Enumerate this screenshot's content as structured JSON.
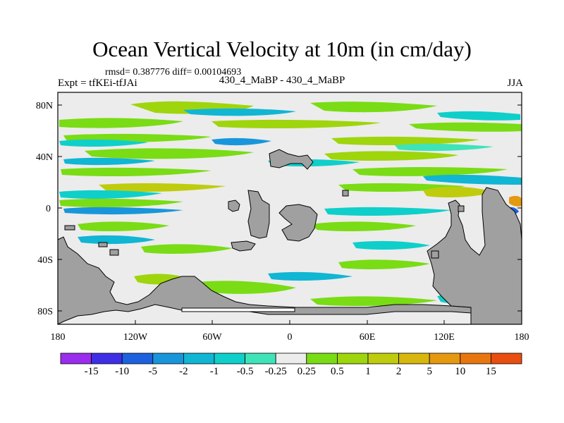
{
  "title": "Ocean Vertical Velocity at 10m (in cm/day)",
  "stats": "rmsd= 0.387776 diff= 0.00104693",
  "experiment": "Expt = tfKEi-tfJAi",
  "case": "430_4_MaBP - 430_4_MaBP",
  "season": "JJA",
  "lat_ticks": [
    "80N",
    "40N",
    "0",
    "40S",
    "80S"
  ],
  "lon_ticks": [
    "180",
    "120W",
    "60W",
    "0",
    "60E",
    "120E",
    "180"
  ],
  "colorbar": {
    "colors": [
      "#9a2ded",
      "#3e2fe6",
      "#1d61df",
      "#1996db",
      "#10b6d3",
      "#0fcfca",
      "#3ee4b8",
      "#ececec",
      "#79dc14",
      "#9fd50c",
      "#bfcc0d",
      "#d7b60e",
      "#e5990f",
      "#e8760f",
      "#e84e10"
    ],
    "labels": [
      "-15",
      "-10",
      "-5",
      "-2",
      "-1",
      "-0.5",
      "-0.25",
      "0.25",
      "0.5",
      "1",
      "2",
      "5",
      "10",
      "15"
    ]
  }
}
